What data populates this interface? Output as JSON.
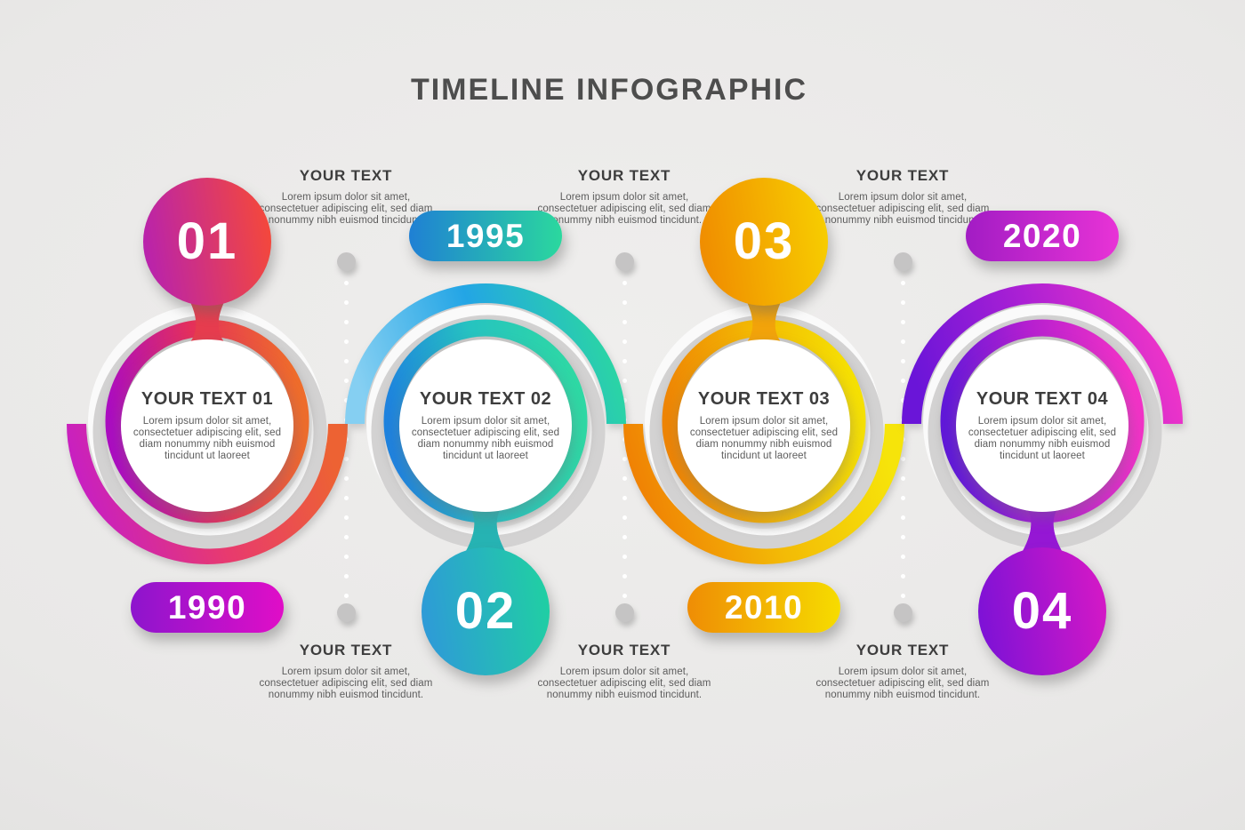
{
  "title": "TIMELINE INFOGRAPHIC",
  "background": {
    "base": "#e9e8e7",
    "vignette": "#dddcdb",
    "dot_large": "#c5c4c4",
    "dot_small": "#ffffff"
  },
  "note": {
    "heading": "YOUR TEXT",
    "body": "Lorem ipsum dolor sit amet, consectetuer adipiscing elit, sed diam nonummy nibh euismod tincidunt."
  },
  "milestones": [
    {
      "number": "01",
      "year": "1990",
      "heading": "YOUR TEXT 01",
      "body": "Lorem ipsum dolor sit amet, consectetuer adipiscing elit, sed diam nonummy nibh euismod tincidunt ut laoreet",
      "number_position": "top",
      "colors": {
        "number": [
          "#b822ae",
          "#f4483b"
        ],
        "ring": [
          "#ab0cc0",
          "#e5305a",
          "#ee6c2b"
        ],
        "outer_arc": [
          "#c61ec6",
          "#e83a6e",
          "#ed6233"
        ],
        "pill": [
          "#8d15cd",
          "#e00ec7"
        ],
        "neck": "#e63c4e"
      }
    },
    {
      "number": "02",
      "year": "1995",
      "heading": "YOUR TEXT 02",
      "body": "Lorem ipsum dolor sit amet, consectetuer adipiscing elit, sed diam nonummy nibh euismod tincidunt ut laoreet",
      "number_position": "bottom",
      "colors": {
        "number": [
          "#2e9ad8",
          "#20cfa3"
        ],
        "ring": [
          "#1e82de",
          "#26c3c0",
          "#2ed8a4"
        ],
        "outer_arc": [
          "#85cff2",
          "#23a5e5",
          "#2bd7a1"
        ],
        "pill": [
          "#1f80d4",
          "#2bd89e"
        ],
        "neck": "#26b3b3"
      }
    },
    {
      "number": "03",
      "year": "2010",
      "heading": "YOUR TEXT 03",
      "body": "Lorem ipsum dolor sit amet, consectetuer adipiscing elit, sed diam nonummy nibh euismod tincidunt ut laoreet",
      "number_position": "top",
      "colors": {
        "number": [
          "#f08c00",
          "#f7cd00"
        ],
        "ring": [
          "#ee8404",
          "#f3b703",
          "#f5e003"
        ],
        "outer_arc": [
          "#f07e04",
          "#f3bb06",
          "#f6e40a"
        ],
        "pill": [
          "#ef8d05",
          "#f6dc00"
        ],
        "neck": "#f2a30a"
      }
    },
    {
      "number": "04",
      "year": "2020",
      "heading": "YOUR TEXT 04",
      "body": "Lorem ipsum dolor sit amet, consectetuer adipiscing elit, sed diam nonummy nibh euismod tincidunt ut laoreet",
      "number_position": "bottom",
      "colors": {
        "number": [
          "#7d12d6",
          "#d418c6"
        ],
        "ring": [
          "#6018d8",
          "#b41fd0",
          "#f132c6"
        ],
        "outer_arc": [
          "#6a15d8",
          "#ab20d4",
          "#f135c8"
        ],
        "pill": [
          "#a21cc4",
          "#e833d6"
        ],
        "neck": "#9517d4"
      }
    }
  ]
}
